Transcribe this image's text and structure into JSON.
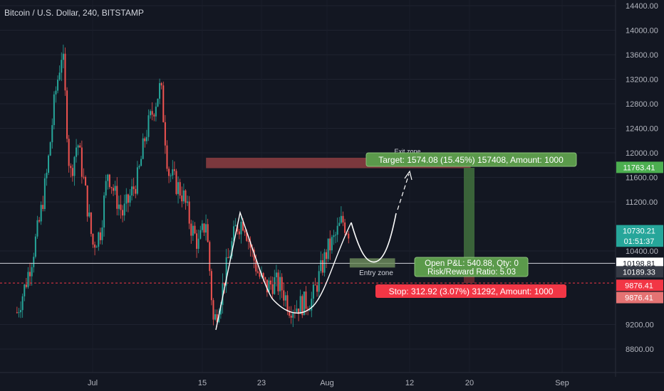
{
  "header": {
    "title": "Bitcoin / U.S. Dollar, 240, BITSTAMP"
  },
  "colors": {
    "background": "#131722",
    "up": "#26a69a",
    "down": "#ef5350",
    "text": "#b2b5be",
    "target": "#4caf50",
    "stop": "#f23645",
    "exit_zone": "#8f3e42",
    "entry_zone": "#6f8f5e"
  },
  "chart_data": {
    "type": "candlestick",
    "ylim": [
      8500,
      14500
    ],
    "y_ticks": [
      {
        "value": 14400,
        "label": "14400.00"
      },
      {
        "value": 14000,
        "label": "14000.00"
      },
      {
        "value": 13600,
        "label": "13600.00"
      },
      {
        "value": 13200,
        "label": "13200.00"
      },
      {
        "value": 12800,
        "label": "12800.00"
      },
      {
        "value": 12400,
        "label": "12400.00"
      },
      {
        "value": 12000,
        "label": "12000.00"
      },
      {
        "value": 11600,
        "label": "11600.00"
      },
      {
        "value": 11200,
        "label": "11200.00"
      },
      {
        "value": 10400,
        "label": "10400.00"
      },
      {
        "value": 9200,
        "label": "9200.00"
      },
      {
        "value": 8800,
        "label": "8800.00"
      }
    ],
    "x_ticks": [
      "Jul",
      "15",
      "23",
      "Aug",
      "12",
      "20",
      "Sep"
    ],
    "price_path": [
      [
        "Jun 21",
        9400
      ],
      [
        "Jun 22",
        9800
      ],
      [
        "Jun 23",
        10300
      ],
      [
        "Jun 24",
        10900
      ],
      [
        "Jun 25",
        11700
      ],
      [
        "Jun 26",
        12900
      ],
      [
        "Jun 27",
        13700
      ],
      [
        "Jun 28",
        11600
      ],
      [
        "Jun 29",
        12200
      ],
      [
        "Jun 30",
        11400
      ],
      [
        "Jul 1",
        10500
      ],
      [
        "Jul 2",
        10700
      ],
      [
        "Jul 3",
        11700
      ],
      [
        "Jul 4",
        11300
      ],
      [
        "Jul 5",
        11000
      ],
      [
        "Jul 6",
        11300
      ],
      [
        "Jul 7",
        11600
      ],
      [
        "Jul 8",
        12300
      ],
      [
        "Jul 9",
        12700
      ],
      [
        "Jul 10",
        13100
      ],
      [
        "Jul 11",
        11700
      ],
      [
        "Jul 12",
        11500
      ],
      [
        "Jul 13",
        11300
      ],
      [
        "Jul 14",
        10800
      ],
      [
        "Jul 15",
        10500
      ],
      [
        "Jul 16",
        10900
      ],
      [
        "Jul 17",
        9200
      ],
      [
        "Jul 18",
        9700
      ],
      [
        "Jul 19",
        10300
      ],
      [
        "Jul 20",
        10800
      ],
      [
        "Jul 21",
        10900
      ],
      [
        "Jul 22",
        10400
      ],
      [
        "Jul 23",
        10000
      ],
      [
        "Jul 24",
        9800
      ],
      [
        "Jul 25",
        9900
      ],
      [
        "Jul 26",
        9800
      ],
      [
        "Jul 27",
        9500
      ],
      [
        "Jul 28",
        9500
      ],
      [
        "Jul 29",
        9550
      ],
      [
        "Jul 30",
        9600
      ],
      [
        "Jul 31",
        10000
      ],
      [
        "Aug 1",
        10400
      ],
      [
        "Aug 2",
        10600
      ],
      [
        "Aug 3",
        10900
      ],
      [
        "Aug 4",
        10700
      ]
    ],
    "price_lines": [
      {
        "value": 10198.81,
        "label": "10198.81",
        "style": "solid-white"
      },
      {
        "value": 9876.41,
        "label": "9876.41",
        "style": "dashed-red"
      }
    ],
    "price_tags": [
      {
        "value": 11763.41,
        "label": "11763.41",
        "color": "#4caf50"
      },
      {
        "value": 10730.21,
        "label": "10730.21",
        "color": "#26a69a"
      },
      {
        "value": 10560,
        "label": "01:51:37",
        "color": "#26a69a"
      },
      {
        "value": 10198.81,
        "label": "10198.81",
        "color": "#ffffff"
      },
      {
        "value": 10060,
        "label": "10189.33",
        "color": "#363a45"
      },
      {
        "value": 9840,
        "label": "9876.41",
        "color": "#f23645"
      },
      {
        "value": 9640,
        "label": "9876.41",
        "color": "#e57373"
      }
    ],
    "annotations": {
      "exit_zone": {
        "label": "Exit zone",
        "from": "Jul 16",
        "to": "Aug 20",
        "low": 11750,
        "high": 11920
      },
      "entry_zone": {
        "label": "Entry zone",
        "from": "Aug 4",
        "to": "Aug 10",
        "low": 10130,
        "high": 10280
      },
      "target_box": {
        "text": "Target: 1574.08 (15.45%) 157408, Amount: 1000"
      },
      "pnl_box": {
        "line1": "Open P&L: 540.88, Qty: 0",
        "line2": "Risk/Reward Ratio: 5.03"
      },
      "stop_box": {
        "text": "Stop: 312.92 (3.07%) 31292, Amount: 1000"
      }
    }
  }
}
